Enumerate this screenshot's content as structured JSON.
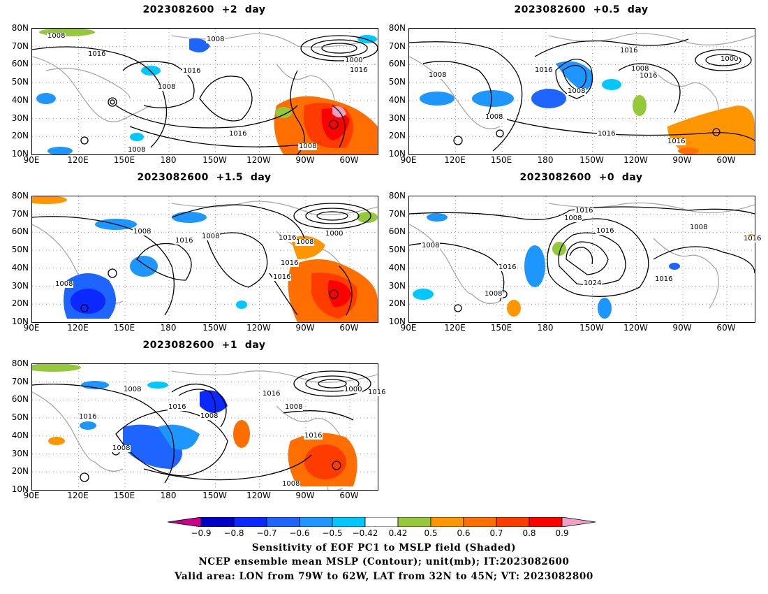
{
  "panels": [
    {
      "id": "p2",
      "title": "2023082600  +2  day"
    },
    {
      "id": "p05",
      "title": "2023082600  +0.5  day"
    },
    {
      "id": "p15",
      "title": "2023082600  +1.5  day"
    },
    {
      "id": "p0",
      "title": "2023082600  +0  day"
    },
    {
      "id": "p1",
      "title": "2023082600  +1  day"
    }
  ],
  "axes": {
    "lat_labels": [
      "80N",
      "70N",
      "60N",
      "50N",
      "40N",
      "30N",
      "20N",
      "10N"
    ],
    "lon_labels": [
      "90E",
      "120E",
      "150E",
      "180",
      "150W",
      "120W",
      "90W",
      "60W"
    ]
  },
  "contour_labels": {
    "p2": [
      "1008",
      "1016",
      "1016",
      "1008",
      "1000",
      "1016",
      "1008",
      "1016",
      "1008",
      "1008"
    ],
    "p05": [
      "1016",
      "1008",
      "1016",
      "1008",
      "1000",
      "1008",
      "1016",
      "1008",
      "1016",
      "1016"
    ],
    "p15": [
      "1008",
      "1016",
      "1008",
      "1000",
      "1016",
      "1008",
      "1016",
      "1016",
      "1008"
    ],
    "p0": [
      "1016",
      "1008",
      "1016",
      "1008",
      "1008",
      "1016",
      "1016",
      "1024",
      "1016",
      "1008"
    ],
    "p1": [
      "1008",
      "1016",
      "1016",
      "1008",
      "1016",
      "1000",
      "1016",
      "1008",
      "1016",
      "1008",
      "1008"
    ]
  },
  "colorbar": {
    "colors": [
      "#c8008c",
      "#0000c8",
      "#0a28ff",
      "#1e64ff",
      "#1e96ff",
      "#00c8ff",
      "#ffffff",
      "#96c83c",
      "#ff9600",
      "#ff6e00",
      "#ff3c00",
      "#ff0000",
      "#f0a0c8"
    ],
    "labels": [
      "−0.9",
      "−0.8",
      "−0.7",
      "−0.6",
      "−0.5",
      "−0.42",
      "0.42",
      "0.5",
      "0.6",
      "0.7",
      "0.8",
      "0.9"
    ]
  },
  "captions": [
    "Sensitivity of EOF PC1 to MSLP field (Shaded)",
    "NCEP ensemble mean MSLP (Contour); unit(mb); IT:2023082600",
    "Valid area: LON from 79W to 62W, LAT from 32N to 45N; VT: 2023082800"
  ]
}
